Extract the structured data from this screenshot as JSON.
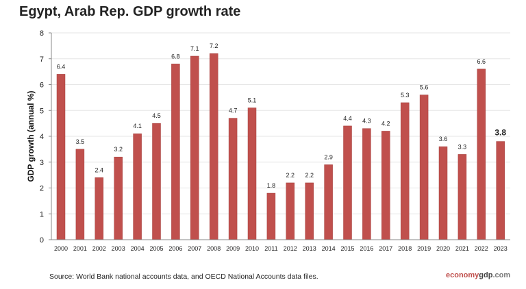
{
  "chart_data": {
    "type": "bar",
    "title": "Egypt, Arab Rep. GDP growth rate",
    "xlabel": "",
    "ylabel": "GDP growth (annual %)",
    "ylim": [
      0,
      8
    ],
    "yticks": [
      0,
      1,
      2,
      3,
      4,
      5,
      6,
      7,
      8
    ],
    "grid": true,
    "bar_color": "#c0504d",
    "categories": [
      "2000",
      "2001",
      "2002",
      "2003",
      "2004",
      "2005",
      "2006",
      "2007",
      "2008",
      "2009",
      "2010",
      "2011",
      "2012",
      "2013",
      "2014",
      "2015",
      "2016",
      "2017",
      "2018",
      "2019",
      "2020",
      "2021",
      "2022",
      "2023"
    ],
    "values": [
      6.4,
      3.5,
      2.4,
      3.2,
      4.1,
      4.5,
      6.8,
      7.1,
      7.2,
      4.7,
      5.1,
      1.8,
      2.2,
      2.2,
      2.9,
      4.4,
      4.3,
      4.2,
      5.3,
      5.6,
      3.6,
      3.3,
      6.6,
      3.8
    ],
    "data_labels": [
      "6.4",
      "3.5",
      "2.4",
      "3.2",
      "4.1",
      "4.5",
      "6.8",
      "7.1",
      "7.2",
      "4.7",
      "5.1",
      "1.8",
      "2.2",
      "2.2",
      "2.9",
      "4.4",
      "4.3",
      "4.2",
      "5.3",
      "5.6",
      "3.6",
      "3.3",
      "6.6",
      "3.8"
    ]
  },
  "source": "Source:  World Bank national accounts data, and OECD National Accounts data files.",
  "logo": {
    "part1": "economy",
    "part2": "gdp",
    "part3": ".com"
  }
}
